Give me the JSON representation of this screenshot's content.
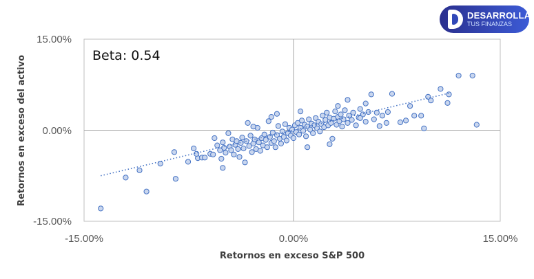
{
  "logo": {
    "line1": "DESARROLLA",
    "line2": "TUS FINANZAS"
  },
  "annotation": "Beta: 0.54",
  "chart_data": {
    "type": "scatter",
    "title": "",
    "xlabel": "Retornos en exceso S&P 500",
    "ylabel": "Retornos en exceso del activo",
    "xlim": [
      -0.15,
      0.15
    ],
    "ylim": [
      -0.15,
      0.15
    ],
    "x_ticks": [
      {
        "value": -0.15,
        "label": "-15.00%"
      },
      {
        "value": 0.0,
        "label": "0.00%"
      },
      {
        "value": 0.15,
        "label": "15.00%"
      }
    ],
    "y_ticks": [
      {
        "value": -0.15,
        "label": "-15.00%"
      },
      {
        "value": 0.0,
        "label": "0.00%"
      },
      {
        "value": 0.15,
        "label": "15.00%"
      }
    ],
    "grid": false,
    "beta": 0.54,
    "trendline": {
      "style": "dotted",
      "color": "#4472c4",
      "x": [
        -0.138,
        0.113
      ],
      "y": [
        -0.075,
        0.061
      ]
    },
    "marker_color": "#4472c4",
    "marker_fill": "#c9d6ee",
    "points": [
      [
        -0.138,
        -0.129
      ],
      [
        -0.105,
        -0.101
      ],
      [
        -0.084,
        -0.08
      ],
      [
        -0.085,
        -0.036
      ],
      [
        -0.071,
        -0.03
      ],
      [
        -0.068,
        -0.046
      ],
      [
        -0.065,
        -0.045
      ],
      [
        -0.063,
        -0.045
      ],
      [
        -0.059,
        -0.039
      ],
      [
        -0.057,
        -0.04
      ],
      [
        -0.056,
        -0.013
      ],
      [
        -0.054,
        -0.025
      ],
      [
        -0.052,
        -0.033
      ],
      [
        -0.051,
        -0.047
      ],
      [
        -0.05,
        -0.02
      ],
      [
        -0.049,
        -0.029
      ],
      [
        -0.048,
        -0.037
      ],
      [
        -0.05,
        -0.062
      ],
      [
        -0.046,
        -0.005
      ],
      [
        -0.045,
        -0.027
      ],
      [
        -0.044,
        -0.033
      ],
      [
        -0.043,
        -0.015
      ],
      [
        -0.042,
        -0.04
      ],
      [
        -0.041,
        -0.024
      ],
      [
        -0.04,
        -0.018
      ],
      [
        -0.039,
        -0.031
      ],
      [
        -0.038,
        -0.044
      ],
      [
        -0.037,
        -0.021
      ],
      [
        -0.036,
        -0.012
      ],
      [
        -0.035,
        -0.03
      ],
      [
        -0.034,
        -0.053
      ],
      [
        -0.033,
        -0.018
      ],
      [
        -0.032,
        0.012
      ],
      [
        -0.031,
        -0.026
      ],
      [
        -0.03,
        -0.009
      ],
      [
        -0.029,
        -0.036
      ],
      [
        -0.028,
        -0.022
      ],
      [
        -0.027,
        -0.015
      ],
      [
        -0.026,
        -0.031
      ],
      [
        -0.025,
        0.004
      ],
      [
        -0.024,
        -0.02
      ],
      [
        -0.023,
        -0.034
      ],
      [
        -0.022,
        -0.013
      ],
      [
        -0.021,
        -0.025
      ],
      [
        -0.02,
        -0.007
      ],
      [
        -0.019,
        -0.016
      ],
      [
        -0.018,
        -0.028
      ],
      [
        -0.017,
        0.015
      ],
      [
        -0.016,
        -0.011
      ],
      [
        -0.015,
        -0.021
      ],
      [
        -0.014,
        -0.004
      ],
      [
        -0.013,
        -0.018
      ],
      [
        -0.012,
        -0.028
      ],
      [
        -0.011,
        -0.008
      ],
      [
        -0.01,
        0.007
      ],
      [
        -0.009,
        -0.014
      ],
      [
        -0.008,
        -0.022
      ],
      [
        -0.007,
        -0.002
      ],
      [
        -0.006,
        -0.011
      ],
      [
        -0.005,
        0.01
      ],
      [
        -0.004,
        -0.017
      ],
      [
        -0.003,
        -0.005
      ],
      [
        -0.002,
        0.004
      ],
      [
        -0.001,
        -0.009
      ],
      [
        0.0,
        0.001
      ],
      [
        0.001,
        -0.013
      ],
      [
        0.002,
        0.008
      ],
      [
        0.003,
        -0.003
      ],
      [
        0.004,
        0.012
      ],
      [
        0.005,
        -0.007
      ],
      [
        0.006,
        0.004
      ],
      [
        0.007,
        0.016
      ],
      [
        0.008,
        -0.001
      ],
      [
        0.009,
        0.009
      ],
      [
        0.01,
        -0.01
      ],
      [
        0.011,
        0.006
      ],
      [
        0.012,
        0.018
      ],
      [
        0.013,
        0.001
      ],
      [
        0.014,
        0.011
      ],
      [
        0.015,
        -0.005
      ],
      [
        0.016,
        0.008
      ],
      [
        0.017,
        0.02
      ],
      [
        0.018,
        0.003
      ],
      [
        0.019,
        0.014
      ],
      [
        0.02,
        -0.002
      ],
      [
        0.021,
        0.01
      ],
      [
        0.022,
        0.024
      ],
      [
        0.023,
        0.005
      ],
      [
        0.024,
        0.017
      ],
      [
        0.025,
        0.029
      ],
      [
        0.026,
        0.008
      ],
      [
        0.027,
        0.021
      ],
      [
        0.028,
        0.012
      ],
      [
        0.029,
        -0.014
      ],
      [
        0.03,
        0.019
      ],
      [
        0.031,
        0.031
      ],
      [
        0.032,
        0.009
      ],
      [
        0.033,
        0.022
      ],
      [
        0.034,
        0.015
      ],
      [
        0.035,
        0.026
      ],
      [
        0.036,
        0.006
      ],
      [
        0.037,
        0.018
      ],
      [
        0.038,
        0.033
      ],
      [
        0.04,
        0.012
      ],
      [
        0.041,
        0.024
      ],
      [
        0.043,
        0.017
      ],
      [
        0.044,
        0.029
      ],
      [
        0.046,
        0.008
      ],
      [
        0.048,
        0.021
      ],
      [
        0.049,
        0.035
      ],
      [
        0.051,
        0.026
      ],
      [
        0.053,
        0.014
      ],
      [
        0.055,
        0.03
      ],
      [
        0.057,
        0.059
      ],
      [
        0.059,
        0.018
      ],
      [
        0.061,
        0.029
      ],
      [
        0.063,
        0.007
      ],
      [
        0.065,
        0.024
      ],
      [
        0.068,
        0.012
      ],
      [
        0.072,
        0.06
      ],
      [
        -0.12,
        -0.078
      ],
      [
        -0.11,
        -0.066
      ],
      [
        -0.095,
        -0.055
      ],
      [
        -0.075,
        -0.052
      ],
      [
        -0.069,
        -0.039
      ],
      [
        0.078,
        0.013
      ],
      [
        0.082,
        0.016
      ],
      [
        0.088,
        0.024
      ],
      [
        0.093,
        0.024
      ],
      [
        0.095,
        0.003
      ],
      [
        0.1,
        0.049
      ],
      [
        0.107,
        0.068
      ],
      [
        0.098,
        0.055
      ],
      [
        0.112,
        0.045
      ],
      [
        0.113,
        0.059
      ],
      [
        0.12,
        0.09
      ],
      [
        0.13,
        0.09
      ],
      [
        0.133,
        0.009
      ],
      [
        0.085,
        0.04
      ],
      [
        0.069,
        0.03
      ],
      [
        -0.011,
        0.027
      ],
      [
        0.033,
        0.04
      ],
      [
        0.027,
        -0.023
      ],
      [
        0.011,
        -0.028
      ],
      [
        0.006,
        0.031
      ],
      [
        -0.015,
        0.022
      ],
      [
        0.049,
        0.02
      ],
      [
        0.053,
        0.044
      ],
      [
        0.04,
        0.05
      ],
      [
        -0.028,
        0.006
      ]
    ]
  }
}
